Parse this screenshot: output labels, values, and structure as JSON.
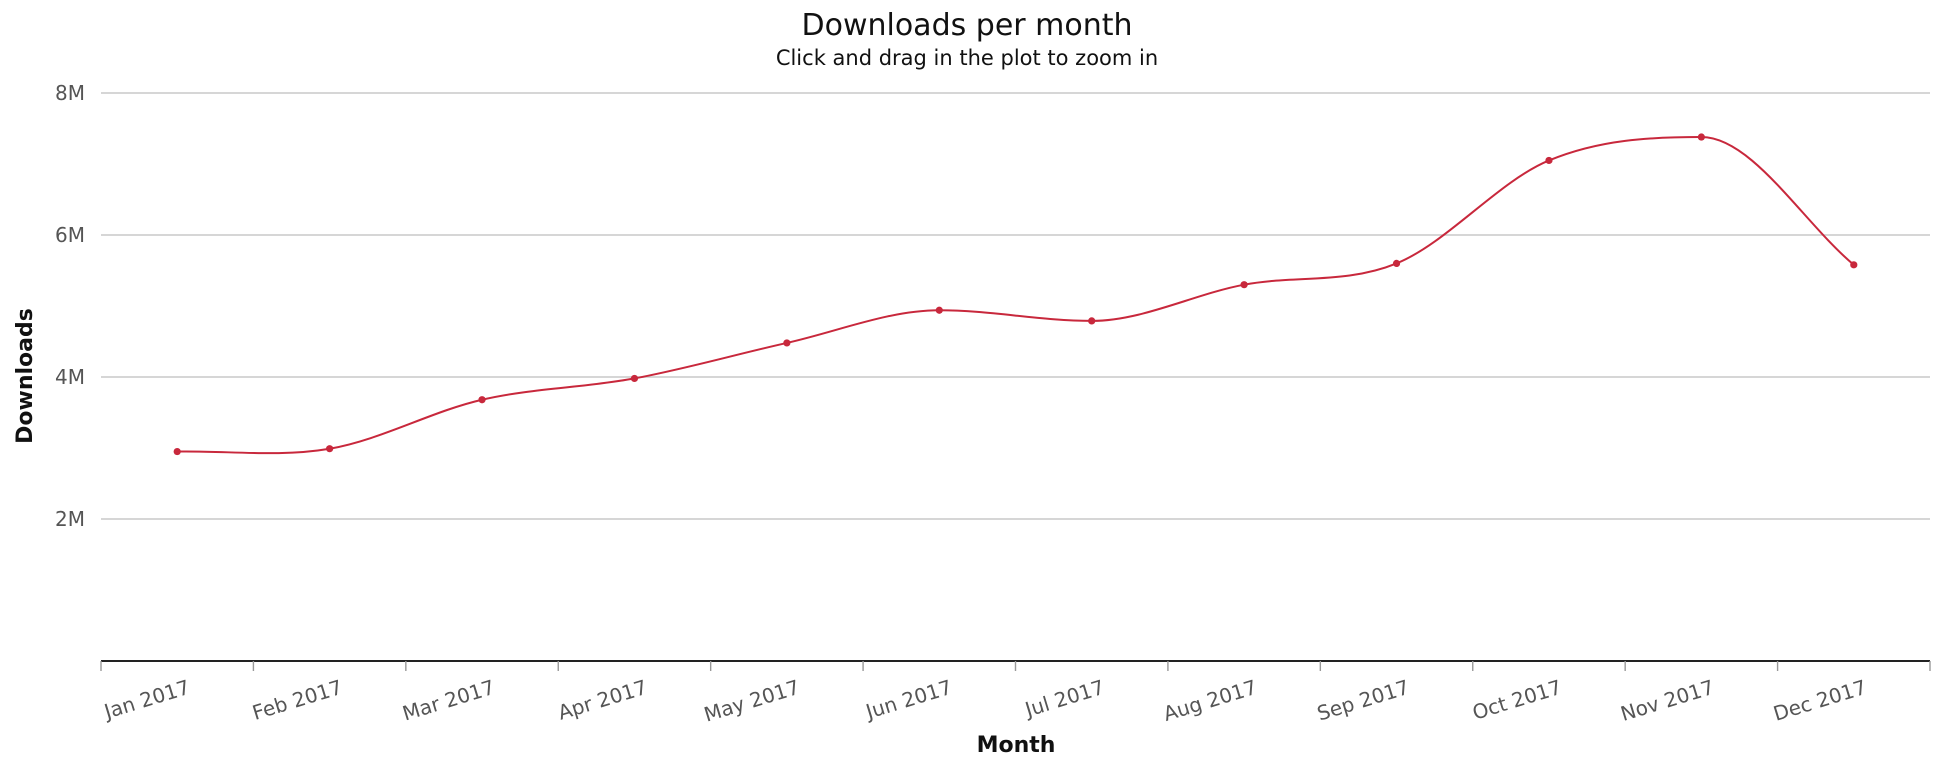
{
  "chart_data": {
    "type": "line",
    "title": "Downloads per month",
    "subtitle": "Click and drag in the plot to zoom in",
    "xlabel": "Month",
    "ylabel": "Downloads",
    "categories": [
      "Jan 2017",
      "Feb 2017",
      "Mar 2017",
      "Apr 2017",
      "May 2017",
      "Jun 2017",
      "Jul 2017",
      "Aug 2017",
      "Sep 2017",
      "Oct 2017",
      "Nov 2017",
      "Dec 2017"
    ],
    "series": [
      {
        "values": [
          2950000,
          2990000,
          3680000,
          3980000,
          4480000,
          4940000,
          4790000,
          5300000,
          5600000,
          7050000,
          7380000,
          5580000
        ],
        "color": "#c8283c"
      }
    ],
    "ylim": [
      0,
      8000000
    ],
    "yticks": [
      {
        "value": 2000000,
        "label": "2M"
      },
      {
        "value": 4000000,
        "label": "4M"
      },
      {
        "value": 6000000,
        "label": "6M"
      },
      {
        "value": 8000000,
        "label": "8M"
      }
    ],
    "grid": true,
    "smooth": true,
    "legend": "none"
  }
}
